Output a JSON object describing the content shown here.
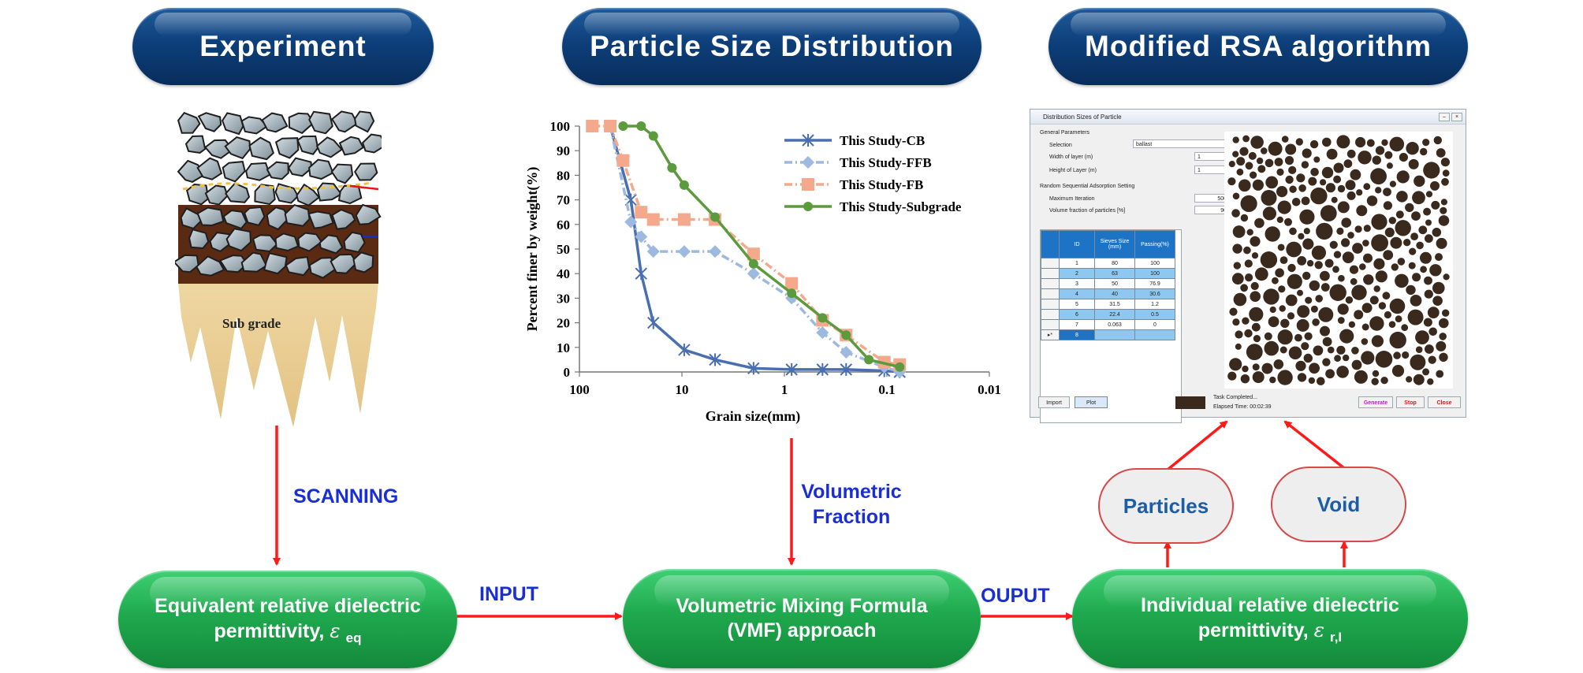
{
  "headers": {
    "experiment": "Experiment",
    "psd": "Particle Size Distribution",
    "rsa": "Modified RSA algorithm"
  },
  "experiment_image": {
    "subgrade_label": "Sub grade"
  },
  "arrow_labels": {
    "scanning": "SCANNING",
    "volumetric_line1": "Volumetric",
    "volumetric_line2": "Fraction",
    "input": "INPUT",
    "output": "OUPUT"
  },
  "boxes": {
    "equivalent_line1": "Equivalent relative dielectric",
    "equivalent_line2": "permittivity,",
    "equivalent_symbol": "ε",
    "equivalent_sub": "eq",
    "vmf_line1": "Volumetric Mixing Formula",
    "vmf_line2": "(VMF) approach",
    "individual_line1": "Individual relative dielectric",
    "individual_line2": "permittivity,",
    "individual_symbol": "ε",
    "individual_sub": "r,I",
    "particles": "Particles",
    "void": "Void"
  },
  "chart_data": {
    "type": "line",
    "xscale": "log",
    "xlim": [
      100,
      0.01
    ],
    "ylim": [
      0,
      100
    ],
    "xlabel": "Grain size(mm)",
    "ylabel": "Percent finer by weight(%)",
    "xticks": [
      "100",
      "10",
      "1",
      "0.1",
      "0.01"
    ],
    "yticks": [
      "0",
      "10",
      "20",
      "30",
      "40",
      "50",
      "60",
      "70",
      "80",
      "90",
      "100"
    ],
    "legend_position": "top-right",
    "series": [
      {
        "name": "This Study-CB",
        "color": "#4a6fb0",
        "marker": "star",
        "x": [
          50,
          31.5,
          25,
          19,
          9.5,
          4.75,
          2,
          0.85,
          0.425,
          0.25,
          0.106,
          0.075
        ],
        "y": [
          100,
          70,
          40,
          20,
          9,
          5,
          1.5,
          1,
          1,
          1,
          0.5,
          0
        ]
      },
      {
        "name": "This Study-FFB",
        "color": "#9db9e0",
        "marker": "diamond",
        "x": [
          50,
          31.5,
          25,
          19,
          9.5,
          4.75,
          2,
          0.85,
          0.425,
          0.25,
          0.106,
          0.075
        ],
        "y": [
          100,
          61,
          55,
          49,
          49,
          49,
          40,
          30,
          16,
          8,
          2,
          0
        ]
      },
      {
        "name": "This Study-FB",
        "color": "#f4a98c",
        "marker": "square",
        "x": [
          75,
          50,
          37.5,
          25,
          19,
          9.5,
          4.75,
          2,
          0.85,
          0.425,
          0.25,
          0.106,
          0.075
        ],
        "y": [
          100,
          100,
          86,
          65,
          62,
          62,
          62,
          48,
          36,
          21,
          15,
          4,
          3
        ]
      },
      {
        "name": "This Study-Subgrade",
        "color": "#5c9a3e",
        "marker": "circle",
        "x": [
          37.5,
          25,
          19,
          12.5,
          9.5,
          4.75,
          2,
          0.85,
          0.425,
          0.25,
          0.15,
          0.075
        ],
        "y": [
          100,
          100,
          96,
          83,
          76,
          63,
          44,
          32,
          22,
          15,
          5,
          2
        ]
      }
    ]
  },
  "software": {
    "title": "Distribution Sizes of Particle",
    "general_parameters": "General Parameters",
    "selection_label": "Selection",
    "selection_value": "ballast",
    "width_label": "Width of layer (m)",
    "width_value": "1",
    "height_label": "Height of Layer (m)",
    "height_value": "1",
    "rsa_setting": "Random Sequential Adsorption Setting",
    "max_iter_label": "Maximum Iteration",
    "max_iter_value": "500",
    "vol_frac_label": "Volume fraction of particles [%]",
    "vol_frac_value": "90",
    "table_headers": [
      "ID",
      "Sieves Size (mm)",
      "Passing(%)"
    ],
    "table_rows": [
      [
        "1",
        "80",
        "100"
      ],
      [
        "2",
        "63",
        "100"
      ],
      [
        "3",
        "50",
        "76.9"
      ],
      [
        "4",
        "40",
        "30.6"
      ],
      [
        "5",
        "31.5",
        "1.2"
      ],
      [
        "6",
        "22.4",
        "0.5"
      ],
      [
        "7",
        "0.063",
        "0"
      ],
      [
        "8",
        "",
        ""
      ]
    ],
    "import_button": "Import",
    "plot_button": "Plot",
    "status_text": "Task Completed...",
    "elapsed_text": "Elapsed Time: 00:02:39",
    "generate_button": "Generate",
    "stop_button": "Stop",
    "close_button": "Close"
  }
}
